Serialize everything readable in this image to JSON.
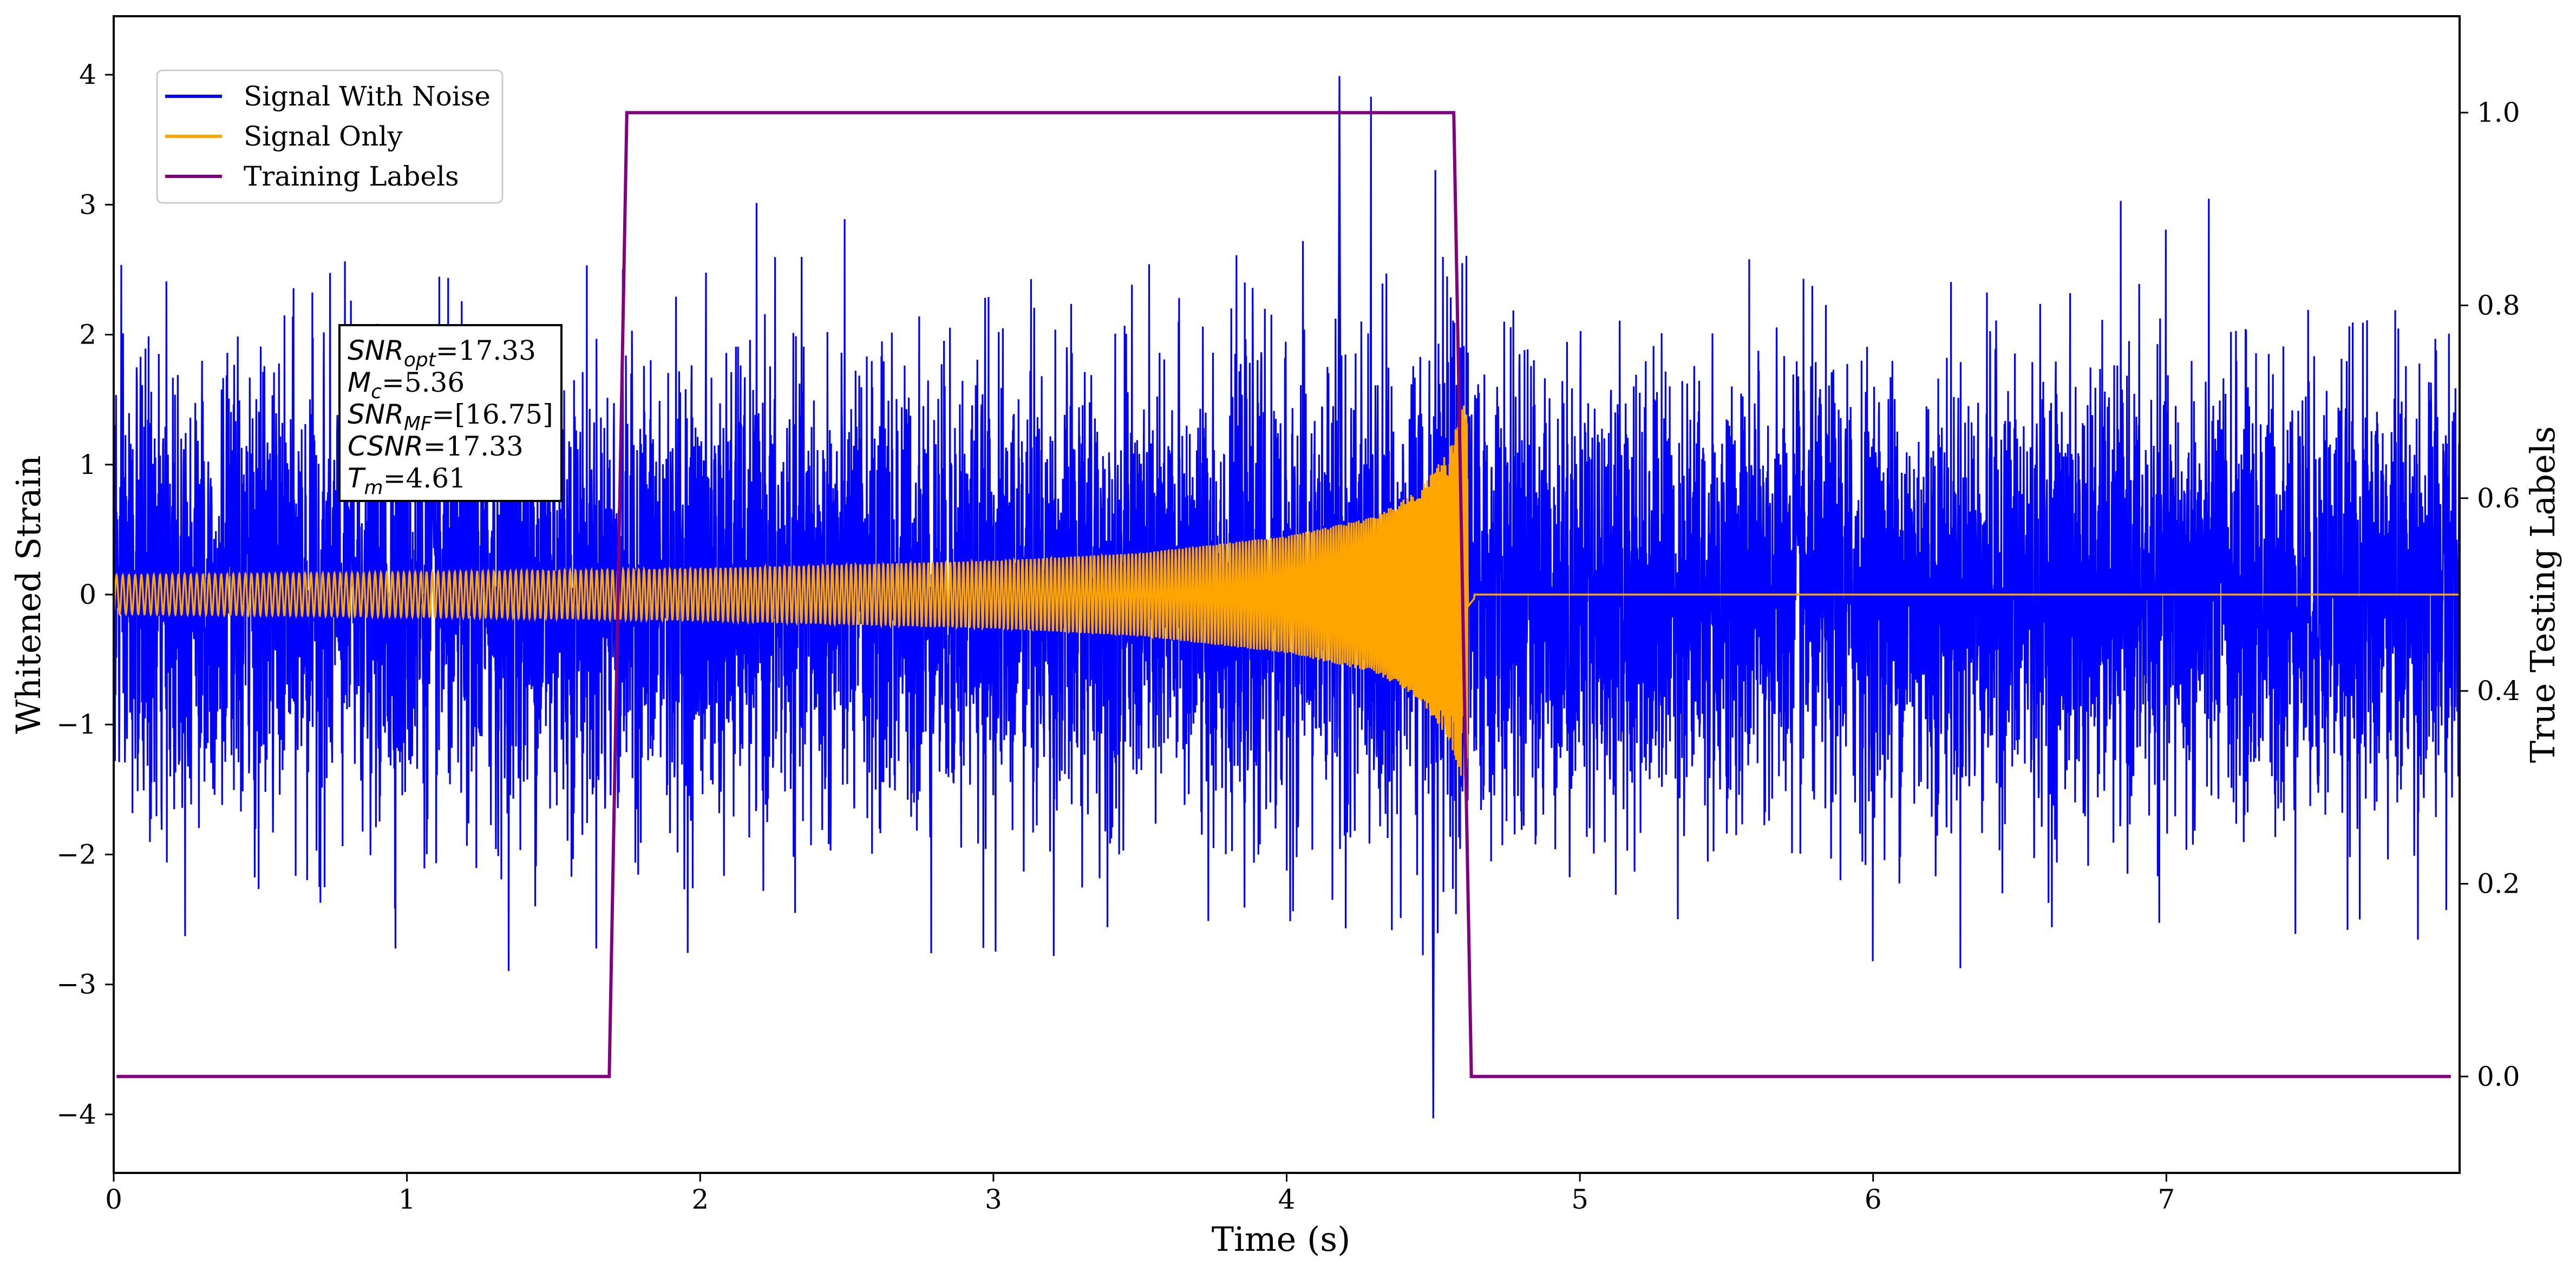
{
  "chart_data": {
    "type": "line",
    "xlabel": "Time (s)",
    "ylabel": "Whitened Strain",
    "y2label": "True Testing Labels",
    "xlim": [
      0,
      8
    ],
    "ylim": [
      -4.45,
      4.45
    ],
    "y2lim": [
      -0.1,
      1.1
    ],
    "x_ticks": [
      0,
      1,
      2,
      3,
      4,
      5,
      6,
      7
    ],
    "x_tick_labels": [
      "0",
      "1",
      "2",
      "3",
      "4",
      "5",
      "6",
      "7"
    ],
    "y_ticks": [
      -4,
      -3,
      -2,
      -1,
      0,
      1,
      2,
      3,
      4
    ],
    "y_tick_labels": [
      "−4",
      "−3",
      "−2",
      "−1",
      "0",
      "1",
      "2",
      "3",
      "4"
    ],
    "y2_ticks": [
      0.0,
      0.2,
      0.4,
      0.6,
      0.8,
      1.0
    ],
    "y2_tick_labels": [
      "0.0",
      "0.2",
      "0.4",
      "0.6",
      "0.8",
      "1.0"
    ],
    "grid": false,
    "legend_position": "top-left",
    "series": [
      {
        "name": "Signal With Noise",
        "color": "#0000ff",
        "axis": "left",
        "description_points": {
          "noise_sigma": 0.85,
          "max_spike": [
            4.18,
            3.99
          ],
          "min_spike": [
            4.5,
            -4.03
          ]
        }
      },
      {
        "name": "Signal Only",
        "color": "#ffa500",
        "axis": "left",
        "envelope": {
          "t": [
            0,
            1,
            2,
            3,
            3.5,
            4,
            4.3,
            4.45,
            4.55,
            4.61,
            4.65,
            8
          ],
          "amplitude": [
            0.15,
            0.17,
            0.2,
            0.26,
            0.32,
            0.45,
            0.6,
            0.8,
            1.1,
            1.5,
            0,
            0
          ]
        }
      },
      {
        "name": "Training Labels",
        "color": "#800080",
        "axis": "right",
        "x": [
          0.01,
          1.69,
          1.75,
          4.57,
          4.63,
          7.97
        ],
        "y": [
          0,
          0,
          1,
          1,
          0,
          0
        ]
      }
    ],
    "annotation": {
      "lines": [
        {
          "sym": "SNR",
          "sub": "opt",
          "val": "=17.33"
        },
        {
          "sym": "M",
          "sub": "c",
          "val": "=5.36"
        },
        {
          "sym": "SNR",
          "sub": "MF",
          "val": "=[16.75]"
        },
        {
          "sym": "CSNR",
          "sub": "",
          "val": "=17.33"
        },
        {
          "sym": "T",
          "sub": "m",
          "val": "=4.61"
        }
      ]
    }
  }
}
